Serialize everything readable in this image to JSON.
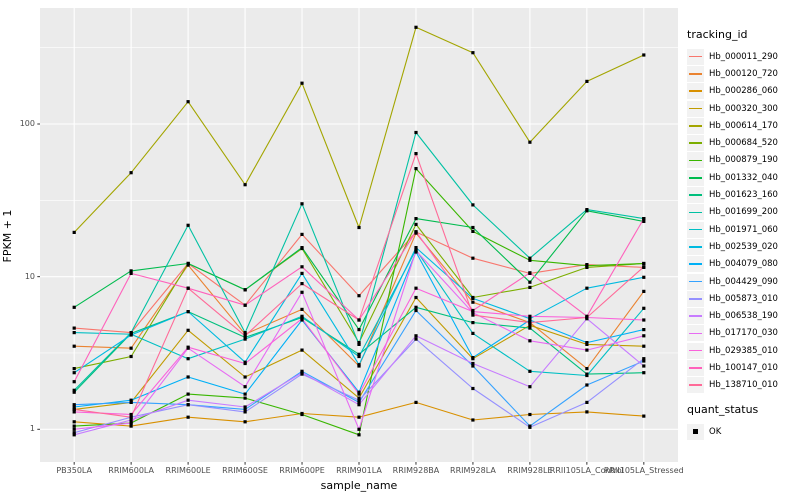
{
  "figure": {
    "background": "#FFFFFF",
    "panel_bg": "#EBEBEB",
    "grid_color": "#FFFFFF",
    "tick_label_color": "#4D4D4D",
    "axis_title_color": "#000000",
    "point_color": "#000000"
  },
  "axes": {
    "x_title": "sample_name",
    "y_title": "FPKM + 1",
    "y_ticks": [
      {
        "label": "1",
        "value": 1
      },
      {
        "label": "10",
        "value": 10
      },
      {
        "label": "100",
        "value": 100
      }
    ],
    "y_minor": [
      3.1623,
      31.623,
      316.23
    ]
  },
  "legend": {
    "tracking_title": "tracking_id",
    "quant_title": "quant_status",
    "quant_items": [
      {
        "label": "OK",
        "marker": "black-square"
      }
    ]
  },
  "chart_data": {
    "type": "line",
    "title": "",
    "xlabel": "sample_name",
    "ylabel": "FPKM + 1",
    "y_scale": "log10",
    "ylim": [
      0.6,
      580
    ],
    "grid": true,
    "legend_position": "right",
    "point_marker": "black-square",
    "categories": [
      "PB350LA",
      "RRIM600LA",
      "RRIM600LE",
      "RRIM600SE",
      "RRIM600PE",
      "RRIM901LA",
      "RRIM928BA",
      "RRIM928LA",
      "RRIM928LE",
      "RRII105LA_Control",
      "RRII105LA_Stressed"
    ],
    "series": [
      {
        "name": "Hb_000011_290",
        "color": "#F8766D",
        "values": [
          4.6,
          4.3,
          12.2,
          6.5,
          18.9,
          7.5,
          19.6,
          13.2,
          10.5,
          12.0,
          11.5
        ]
      },
      {
        "name": "Hb_000120_720",
        "color": "#EA8331",
        "values": [
          3.5,
          3.4,
          11.9,
          4.2,
          6.1,
          2.6,
          19.3,
          6.8,
          5.0,
          2.5,
          8.0
        ]
      },
      {
        "name": "Hb_000286_060",
        "color": "#D89000",
        "values": [
          1.12,
          1.05,
          1.2,
          1.12,
          1.27,
          1.2,
          1.5,
          1.15,
          1.25,
          1.3,
          1.22
        ]
      },
      {
        "name": "Hb_000320_300",
        "color": "#C09B00",
        "values": [
          1.35,
          1.5,
          4.45,
          2.2,
          3.3,
          1.6,
          7.3,
          2.9,
          4.8,
          3.6,
          3.5
        ]
      },
      {
        "name": "Hb_000614_170",
        "color": "#A3A500",
        "values": [
          19.5,
          48,
          140,
          40,
          185,
          21,
          430,
          293,
          76,
          190,
          283
        ]
      },
      {
        "name": "Hb_000684_520",
        "color": "#7CAE00",
        "values": [
          2.5,
          3.0,
          12.2,
          8.2,
          15.3,
          3.7,
          22,
          7.3,
          8.5,
          11.5,
          12.2
        ]
      },
      {
        "name": "Hb_000879_190",
        "color": "#39B600",
        "values": [
          1.05,
          1.1,
          1.7,
          1.6,
          1.25,
          0.92,
          51,
          19.8,
          12.8,
          11.8,
          12.2
        ]
      },
      {
        "name": "Hb_001332_040",
        "color": "#00BB4E",
        "values": [
          6.3,
          10.9,
          12.2,
          8.2,
          15.5,
          4.5,
          24,
          21,
          9.2,
          27,
          23
        ]
      },
      {
        "name": "Hb_001623_160",
        "color": "#00BF7D",
        "values": [
          1.75,
          4.25,
          5.9,
          4.0,
          5.4,
          3.1,
          6.3,
          5.0,
          4.6,
          2.3,
          2.35
        ]
      },
      {
        "name": "Hb_001699_200",
        "color": "#00C1A3",
        "values": [
          1.8,
          4.3,
          21.7,
          4.3,
          30,
          3.6,
          88,
          29.5,
          13.2,
          27.5,
          24
        ]
      },
      {
        "name": "Hb_001971_060",
        "color": "#00BFC4",
        "values": [
          4.3,
          4.2,
          2.9,
          3.9,
          5.5,
          3.0,
          15.0,
          4.25,
          2.4,
          2.25,
          6.2
        ]
      },
      {
        "name": "Hb_002539_020",
        "color": "#00BAE0",
        "values": [
          2.35,
          4.15,
          5.9,
          2.75,
          10.5,
          2.65,
          15.5,
          7.2,
          5.3,
          8.4,
          9.9
        ]
      },
      {
        "name": "Hb_004079_080",
        "color": "#00B0F6",
        "values": [
          1.4,
          1.55,
          2.2,
          1.7,
          5.2,
          1.75,
          14.5,
          2.95,
          5.2,
          3.7,
          4.5
        ]
      },
      {
        "name": "Hb_004429_090",
        "color": "#35A2FF",
        "values": [
          1.45,
          1.5,
          1.45,
          1.35,
          2.4,
          1.5,
          6.0,
          2.6,
          1.05,
          1.95,
          2.8
        ]
      },
      {
        "name": "Hb_005873_010",
        "color": "#9590FF",
        "values": [
          0.95,
          1.2,
          1.45,
          1.3,
          2.3,
          1.55,
          3.9,
          1.85,
          1.03,
          1.5,
          2.9
        ]
      },
      {
        "name": "Hb_006538_190",
        "color": "#C77CFF",
        "values": [
          0.92,
          1.15,
          1.55,
          1.4,
          2.35,
          1.45,
          4.1,
          2.7,
          1.9,
          5.3,
          2.6
        ]
      },
      {
        "name": "Hb_017170_030",
        "color": "#E76BF3",
        "values": [
          1.0,
          1.1,
          3.4,
          1.9,
          7.9,
          1.0,
          14.8,
          5.8,
          3.8,
          3.3,
          4.1
        ]
      },
      {
        "name": "Hb_029385_010",
        "color": "#FA62DB",
        "values": [
          1.3,
          1.25,
          3.45,
          2.7,
          5.3,
          1.7,
          8.4,
          5.9,
          5.5,
          5.4,
          5.2
        ]
      },
      {
        "name": "Hb_100147_010",
        "color": "#FF62BC",
        "values": [
          2.05,
          10.5,
          8.4,
          6.5,
          11.6,
          5.2,
          19.7,
          6.0,
          10.6,
          5.5,
          24
        ]
      },
      {
        "name": "Hb_138710_010",
        "color": "#FF6A98",
        "values": [
          1.35,
          1.2,
          8.4,
          4.1,
          9.0,
          5.2,
          64,
          5.6,
          5.0,
          5.4,
          11.6
        ]
      }
    ]
  }
}
